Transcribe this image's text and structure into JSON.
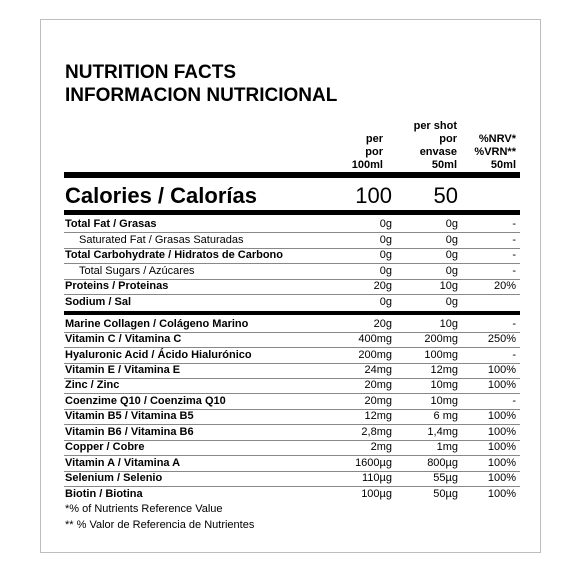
{
  "title_en": "NUTRITION FACTS",
  "title_es": "INFORMACION NUTRICIONAL",
  "headers": {
    "per_100": [
      "per",
      "por",
      "100ml"
    ],
    "per_shot": [
      "per shot",
      "por",
      "envase",
      "50ml"
    ],
    "nrv": [
      "%NRV*",
      "%VRN**",
      "50ml"
    ]
  },
  "calories": {
    "label": "Calories / Calorías",
    "per_100": "100",
    "per_shot": "50"
  },
  "rows": [
    {
      "label": "Total Fat / Grasas",
      "bold": true,
      "indent": false,
      "per_100": "0g",
      "per_shot": "0g",
      "nrv": "-"
    },
    {
      "label": "Saturated Fat / Grasas Saturadas",
      "bold": false,
      "indent": true,
      "per_100": "0g",
      "per_shot": "0g",
      "nrv": "-"
    },
    {
      "label": "Total Carbohydrate / Hidratos de Carbono",
      "bold": true,
      "indent": false,
      "per_100": "0g",
      "per_shot": "0g",
      "nrv": "-"
    },
    {
      "label": "Total Sugars / Azúcares",
      "bold": false,
      "indent": true,
      "per_100": "0g",
      "per_shot": "0g",
      "nrv": "-"
    },
    {
      "label": "Proteins / Proteinas",
      "bold": true,
      "indent": false,
      "per_100": "20g",
      "per_shot": "10g",
      "nrv": "20%"
    },
    {
      "label": "Sodium / Sal",
      "bold": true,
      "indent": false,
      "per_100": "0g",
      "per_shot": "0g",
      "nrv": ""
    },
    {
      "label": "Marine Collagen / Colágeno Marino",
      "bold": true,
      "indent": false,
      "per_100": "20g",
      "per_shot": "10g",
      "nrv": "-"
    },
    {
      "label": "Vitamin C / Vitamina C",
      "bold": true,
      "indent": false,
      "per_100": "400mg",
      "per_shot": "200mg",
      "nrv": "250%"
    },
    {
      "label": "Hyaluronic Acid / Ácido Hialurónico",
      "bold": true,
      "indent": false,
      "per_100": "200mg",
      "per_shot": "100mg",
      "nrv": "-"
    },
    {
      "label": "Vitamin E / Vitamina E",
      "bold": true,
      "indent": false,
      "per_100": "24mg",
      "per_shot": "12mg",
      "nrv": "100%"
    },
    {
      "label": "Zinc / Zinc",
      "bold": true,
      "indent": false,
      "per_100": "20mg",
      "per_shot": "10mg",
      "nrv": "100%"
    },
    {
      "label": "Coenzime Q10 / Coenzima Q10",
      "bold": true,
      "indent": false,
      "per_100": "20mg",
      "per_shot": "10mg",
      "nrv": "-"
    },
    {
      "label": "Vitamin B5 / Vitamina B5",
      "bold": true,
      "indent": false,
      "per_100": "12mg",
      "per_shot": "6 mg",
      "nrv": "100%"
    },
    {
      "label": "Vitamin B6 / Vitamina B6",
      "bold": true,
      "indent": false,
      "per_100": "2,8mg",
      "per_shot": "1,4mg",
      "nrv": "100%"
    },
    {
      "label": "Copper / Cobre",
      "bold": true,
      "indent": false,
      "per_100": "2mg",
      "per_shot": "1mg",
      "nrv": "100%"
    },
    {
      "label": "Vitamin A / Vitamina A",
      "bold": true,
      "indent": false,
      "per_100": "1600µg",
      "per_shot": "800µg",
      "nrv": "100%"
    },
    {
      "label": "Selenium / Selenio",
      "bold": true,
      "indent": false,
      "per_100": "110µg",
      "per_shot": "55µg",
      "nrv": "100%"
    },
    {
      "label": "Biotin / Biotina",
      "bold": true,
      "indent": false,
      "per_100": "100µg",
      "per_shot": "50µg",
      "nrv": "100%"
    }
  ],
  "footnotes": [
    "*% of Nutrients Reference Value",
    "** % Valor de Referencia de Nutrientes"
  ]
}
